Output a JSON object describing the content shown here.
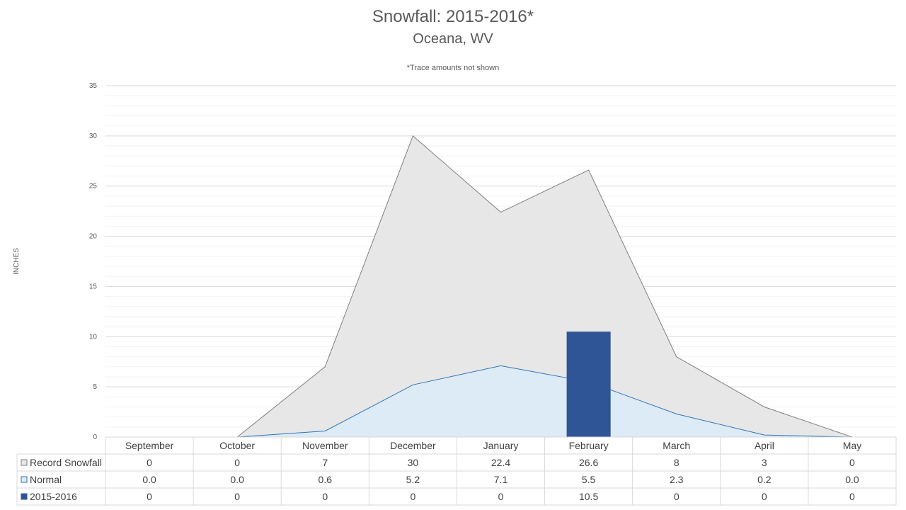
{
  "chart_data": {
    "type": "area",
    "title": "Snowfall: 2015-2016*",
    "subtitle": "Oceana, WV",
    "note": "*Trace amounts not shown",
    "ylabel": "INCHES",
    "ylim": [
      0,
      35
    ],
    "yticks": [
      "0",
      "5",
      "10",
      "15",
      "20",
      "25",
      "30",
      "35"
    ],
    "categories": [
      "September",
      "October",
      "November",
      "December",
      "January",
      "February",
      "March",
      "April",
      "May"
    ],
    "legend_placement": "data-table",
    "series": [
      {
        "name": "Record Snowfall",
        "kind": "area",
        "color": "#e7e7e7",
        "stroke": "#7f7f7f",
        "values": [
          0,
          0,
          7,
          30,
          22.4,
          26.6,
          8,
          3,
          0
        ],
        "labels": [
          "0",
          "0",
          "7",
          "30",
          "22.4",
          "26.6",
          "8",
          "3",
          "0"
        ]
      },
      {
        "name": "Normal",
        "kind": "area",
        "color": "#ddebf7",
        "stroke": "#2e75b6",
        "values": [
          0.0,
          0.0,
          0.6,
          5.2,
          7.1,
          5.5,
          2.3,
          0.2,
          0.0
        ],
        "labels": [
          "0.0",
          "0.0",
          "0.6",
          "5.2",
          "7.1",
          "5.5",
          "2.3",
          "0.2",
          "0.0"
        ]
      },
      {
        "name": "2015-2016",
        "kind": "bar",
        "color": "#2f5597",
        "values": [
          0,
          0,
          0,
          0,
          0,
          10.5,
          0,
          0,
          0
        ],
        "labels": [
          "0",
          "0",
          "0",
          "0",
          "0",
          "10.5",
          "0",
          "0",
          "0"
        ]
      }
    ]
  }
}
